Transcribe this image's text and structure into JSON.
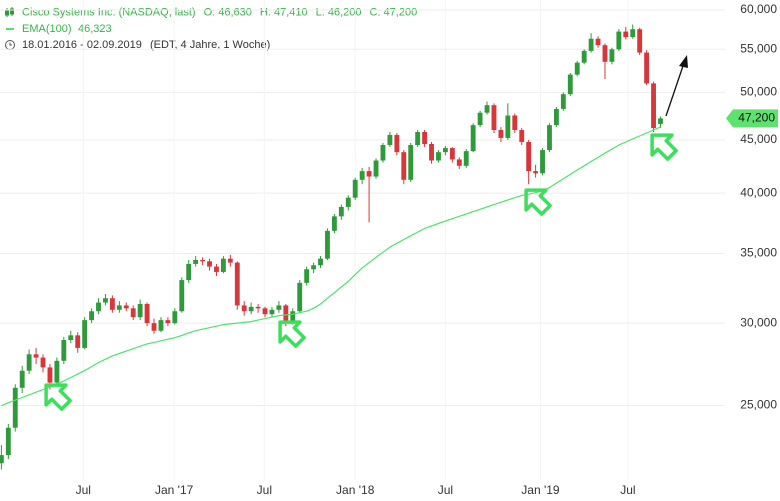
{
  "chart_data": {
    "type": "candlestick",
    "header_values": [
      "O: 46,630",
      "H: 47,410",
      "L: 46,200",
      "C: 47,200"
    ],
    "period": "18.01.2016 - 02.09.2019",
    "period_note": "(EDT, 4 Jahre, 1 Woche)",
    "ema_value_label": "46,323",
    "last_price": {
      "value": 47200,
      "label": "47,200"
    },
    "log_scale": true,
    "grid": true,
    "ylim": [
      21200,
      61340
    ],
    "yticks": [
      {
        "value": 25000,
        "label": "25,000"
      },
      {
        "value": 30000,
        "label": "30,000"
      },
      {
        "value": 35000,
        "label": "35,000"
      },
      {
        "value": 40000,
        "label": "40,000"
      },
      {
        "value": 45000,
        "label": "45,000"
      },
      {
        "value": 50000,
        "label": "50,000"
      },
      {
        "value": 55000,
        "label": "55,000"
      },
      {
        "value": 60000,
        "label": "60,000"
      }
    ],
    "xlim": [
      -0.2,
      104.3
    ],
    "xticks": [
      {
        "value": 11.8,
        "label": "Jul"
      },
      {
        "value": 24.9,
        "label": "Jan '17"
      },
      {
        "value": 37.9,
        "label": "Jul"
      },
      {
        "value": 51,
        "label": "Jan '18"
      },
      {
        "value": 64,
        "label": "Jul"
      },
      {
        "value": 77.7,
        "label": "Jan '19"
      },
      {
        "value": 90.3,
        "label": "Jul"
      }
    ],
    "series": [
      {
        "name": "Cisco Systems Inc. (NASDAQ, last)",
        "up_color": "#2f9a3a",
        "down_color": "#d9363a",
        "ohlc": [
          [
            22000,
            22900,
            21700,
            22400
          ],
          [
            22400,
            24000,
            22200,
            23800
          ],
          [
            23800,
            26200,
            23600,
            26000
          ],
          [
            26000,
            27300,
            25700,
            27000
          ],
          [
            27000,
            28300,
            26800,
            28000
          ],
          [
            28000,
            28400,
            27400,
            27800
          ],
          [
            27800,
            28000,
            26900,
            27200
          ],
          [
            27200,
            27400,
            25900,
            26300
          ],
          [
            26300,
            27800,
            26100,
            27600
          ],
          [
            27600,
            29100,
            27400,
            28900
          ],
          [
            28900,
            29500,
            28700,
            29200
          ],
          [
            29200,
            29400,
            28100,
            28400
          ],
          [
            28400,
            30400,
            28300,
            30200
          ],
          [
            30200,
            31000,
            30000,
            30800
          ],
          [
            30800,
            31700,
            30600,
            31400
          ],
          [
            31400,
            32000,
            31200,
            31700
          ],
          [
            31700,
            31900,
            30700,
            30900
          ],
          [
            30900,
            31500,
            30700,
            31200
          ],
          [
            31200,
            31400,
            30800,
            31000
          ],
          [
            31000,
            31200,
            30200,
            30400
          ],
          [
            30400,
            31600,
            30200,
            31300
          ],
          [
            31300,
            31400,
            29800,
            30000
          ],
          [
            30000,
            30300,
            29300,
            29500
          ],
          [
            29500,
            30400,
            29400,
            30200
          ],
          [
            30200,
            30400,
            29800,
            30000
          ],
          [
            30000,
            31000,
            29900,
            30800
          ],
          [
            30800,
            33200,
            30700,
            33000
          ],
          [
            33000,
            34500,
            32800,
            34200
          ],
          [
            34200,
            34800,
            34000,
            34500
          ],
          [
            34500,
            34700,
            34100,
            34400
          ],
          [
            34400,
            34600,
            33700,
            34000
          ],
          [
            34000,
            34200,
            33300,
            33600
          ],
          [
            33600,
            34800,
            33500,
            34600
          ],
          [
            34600,
            34900,
            34000,
            34300
          ],
          [
            34300,
            34400,
            30900,
            31200
          ],
          [
            31200,
            31500,
            30500,
            30800
          ],
          [
            30800,
            31400,
            30600,
            31100
          ],
          [
            31100,
            31300,
            30700,
            31000
          ],
          [
            31000,
            31100,
            30400,
            30600
          ],
          [
            30600,
            31100,
            30400,
            30900
          ],
          [
            30900,
            31500,
            30700,
            31200
          ],
          [
            31200,
            31300,
            29800,
            30100
          ],
          [
            30100,
            31000,
            29900,
            30800
          ],
          [
            30800,
            33000,
            30700,
            32800
          ],
          [
            32800,
            34000,
            32600,
            33800
          ],
          [
            33800,
            34300,
            33500,
            34100
          ],
          [
            34100,
            34800,
            33900,
            34600
          ],
          [
            34600,
            37000,
            34500,
            36800
          ],
          [
            36800,
            38200,
            36600,
            38000
          ],
          [
            38000,
            39000,
            37700,
            38800
          ],
          [
            38800,
            39800,
            38500,
            39600
          ],
          [
            39600,
            41400,
            39400,
            41200
          ],
          [
            41200,
            42300,
            40800,
            42000
          ],
          [
            42000,
            42400,
            37500,
            41500
          ],
          [
            41500,
            43200,
            41300,
            43000
          ],
          [
            43000,
            44700,
            42800,
            44500
          ],
          [
            44500,
            45800,
            44300,
            45500
          ],
          [
            45500,
            45700,
            43500,
            43800
          ],
          [
            43800,
            44000,
            40800,
            41200
          ],
          [
            41200,
            44700,
            41000,
            44500
          ],
          [
            44500,
            46000,
            44300,
            45800
          ],
          [
            45800,
            46000,
            44300,
            44600
          ],
          [
            44600,
            44800,
            42700,
            43000
          ],
          [
            43000,
            44000,
            42800,
            43800
          ],
          [
            43800,
            44400,
            43500,
            44200
          ],
          [
            44200,
            44300,
            42800,
            43100
          ],
          [
            43100,
            43300,
            42200,
            42500
          ],
          [
            42500,
            44100,
            42300,
            43900
          ],
          [
            43900,
            46700,
            43800,
            46500
          ],
          [
            46500,
            48000,
            46300,
            47800
          ],
          [
            47800,
            49000,
            47600,
            48600
          ],
          [
            48600,
            48800,
            45700,
            46000
          ],
          [
            46000,
            46300,
            44800,
            45200
          ],
          [
            45200,
            48800,
            45000,
            47500
          ],
          [
            47500,
            47700,
            45700,
            46000
          ],
          [
            46000,
            46200,
            44500,
            44800
          ],
          [
            44800,
            45000,
            40800,
            42000
          ],
          [
            42000,
            42600,
            41400,
            41800
          ],
          [
            41800,
            44200,
            41600,
            44000
          ],
          [
            44000,
            46700,
            43800,
            46500
          ],
          [
            46500,
            48400,
            46300,
            48200
          ],
          [
            48200,
            50000,
            48000,
            49800
          ],
          [
            49800,
            52200,
            49600,
            52000
          ],
          [
            52000,
            53600,
            51800,
            53400
          ],
          [
            53400,
            55000,
            53200,
            54800
          ],
          [
            54800,
            57000,
            54600,
            56300
          ],
          [
            56300,
            56600,
            55200,
            55500
          ],
          [
            55500,
            55700,
            51500,
            53500
          ],
          [
            53500,
            55200,
            53200,
            55000
          ],
          [
            55000,
            57500,
            54800,
            57200
          ],
          [
            57200,
            57800,
            56200,
            56500
          ],
          [
            56500,
            58100,
            56300,
            57500
          ],
          [
            57500,
            57700,
            54300,
            54600
          ],
          [
            54600,
            54900,
            50800,
            51000
          ],
          [
            51000,
            51200,
            45800,
            46200
          ],
          [
            46630,
            47410,
            46200,
            47200
          ]
        ]
      },
      {
        "name": "EMA(100)",
        "color": "#4fe36c",
        "values": [
          25000,
          25150,
          25300,
          25450,
          25600,
          25750,
          25900,
          26050,
          26200,
          26400,
          26600,
          26800,
          27000,
          27250,
          27500,
          27700,
          27900,
          28050,
          28200,
          28350,
          28500,
          28650,
          28750,
          28850,
          28950,
          29050,
          29200,
          29350,
          29500,
          29600,
          29700,
          29800,
          29900,
          29950,
          30000,
          30050,
          30100,
          30200,
          30300,
          30400,
          30500,
          30550,
          30600,
          30700,
          30800,
          31000,
          31300,
          31700,
          32100,
          32500,
          32900,
          33400,
          33900,
          34300,
          34700,
          35100,
          35500,
          35800,
          36100,
          36400,
          36700,
          37000,
          37200,
          37400,
          37600,
          37800,
          38000,
          38200,
          38400,
          38600,
          38800,
          39000,
          39200,
          39400,
          39600,
          39800,
          39900,
          40050,
          40200,
          40500,
          40900,
          41300,
          41700,
          42100,
          42500,
          42900,
          43300,
          43700,
          44100,
          44500,
          44800,
          45100,
          45400,
          45700,
          46000,
          46323
        ]
      }
    ]
  }
}
